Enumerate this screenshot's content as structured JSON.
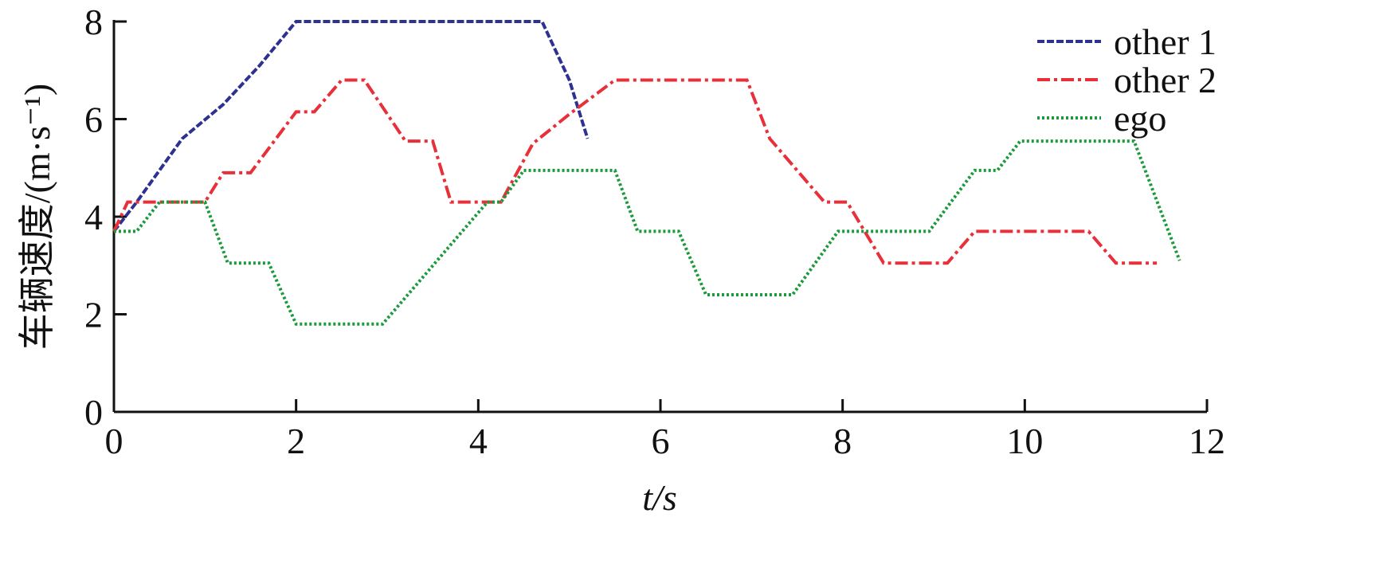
{
  "chart_data": {
    "type": "line",
    "x_label": "t/s",
    "y_label": "车辆速度/(m·s⁻¹)",
    "xlim": [
      0,
      12
    ],
    "xticks": [
      0,
      2,
      4,
      6,
      8,
      10,
      12
    ],
    "ylim": [
      0,
      8
    ],
    "yticks": [
      0,
      2,
      4,
      6,
      8
    ],
    "legend": "upper right",
    "series": [
      {
        "name": "other 1",
        "color": "#2e3192",
        "dash": "dashed",
        "x": [
          0,
          0.25,
          0.75,
          1.2,
          1.6,
          2,
          4.7,
          5,
          5.2
        ],
        "values": [
          3.7,
          4.3,
          5.6,
          6.3,
          7.1,
          8,
          8,
          6.8,
          5.6
        ]
      },
      {
        "name": "other 2",
        "color": "#e8303a",
        "dash": "dashdot",
        "x": [
          0,
          0.15,
          1,
          1.2,
          1.5,
          2,
          2.2,
          2.5,
          2.75,
          3.2,
          3.5,
          3.7,
          4.25,
          4.6,
          5,
          5.5,
          6.95,
          7.2,
          7.8,
          8.05,
          8.45,
          9.15,
          9.45,
          10.7,
          11,
          11.45
        ],
        "values": [
          3.7,
          4.3,
          4.3,
          4.9,
          4.9,
          6.15,
          6.15,
          6.8,
          6.8,
          5.55,
          5.55,
          4.3,
          4.3,
          5.5,
          6.1,
          6.8,
          6.8,
          5.6,
          4.3,
          4.3,
          3.05,
          3.05,
          3.7,
          3.7,
          3.05,
          3.05
        ]
      },
      {
        "name": "ego",
        "color": "#1a9a3a",
        "dash": "dotted",
        "x": [
          0,
          0.25,
          0.5,
          1,
          1.25,
          1.7,
          2,
          2.95,
          4.1,
          4.25,
          4.5,
          5.5,
          5.75,
          6.2,
          6.5,
          7.45,
          7.95,
          8.95,
          9.45,
          9.7,
          9.95,
          11.2,
          11.7
        ],
        "values": [
          3.7,
          3.7,
          4.3,
          4.3,
          3.05,
          3.05,
          1.8,
          1.8,
          4.3,
          4.3,
          4.95,
          4.95,
          3.7,
          3.7,
          2.4,
          2.4,
          3.7,
          3.7,
          4.95,
          4.95,
          5.55,
          5.55,
          3.1
        ]
      }
    ]
  }
}
